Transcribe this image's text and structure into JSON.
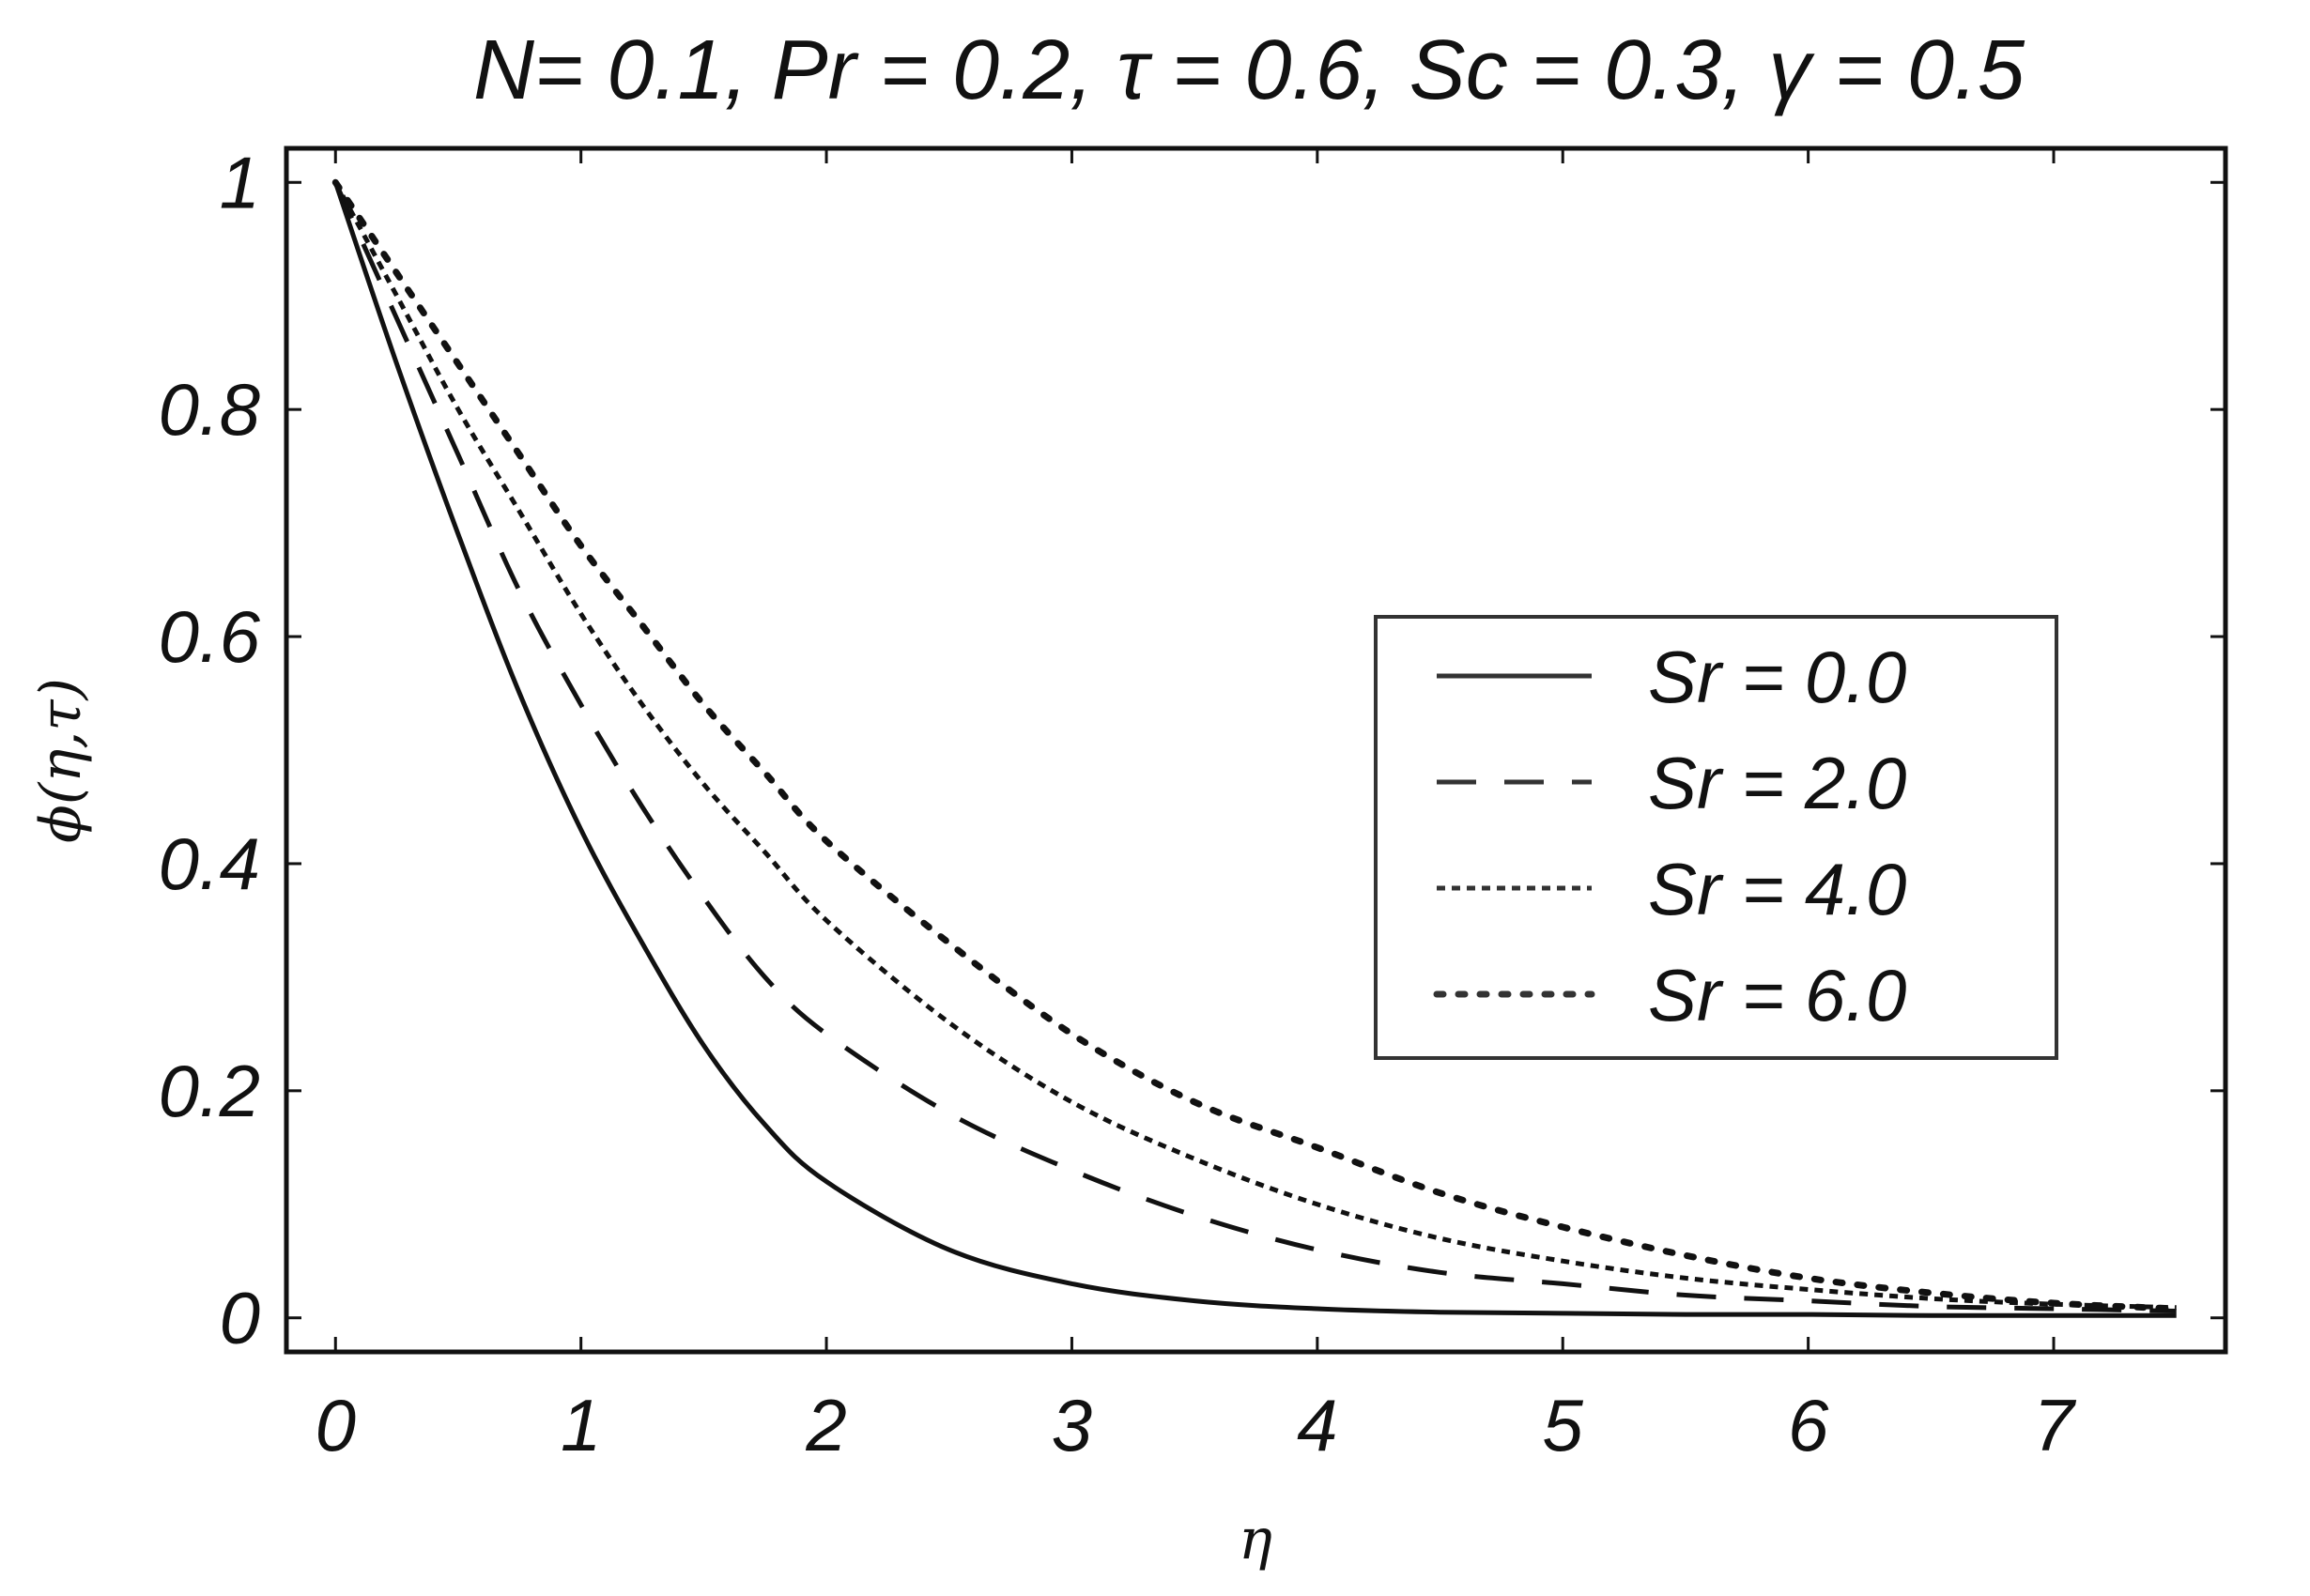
{
  "chart_data": {
    "type": "line",
    "title": "N= 0.1, Pr = 0.2, τ = 0.6, Sc = 0.3, γ = 0.5",
    "xlabel": "η",
    "ylabel": "ϕ(η,τ)",
    "xlim": [
      -0.2,
      7.7
    ],
    "ylim": [
      -0.03,
      1.03
    ],
    "xticks": [
      0,
      1,
      2,
      3,
      4,
      5,
      6,
      7
    ],
    "yticks": [
      0,
      0.2,
      0.4,
      0.6,
      0.8,
      1
    ],
    "ytick_labels": [
      "0",
      "0.2",
      "0.4",
      "0.6",
      "0.8",
      "1"
    ],
    "grid": false,
    "legend_position": "center-right",
    "series": [
      {
        "name": "Sr = 0.0",
        "style": "solid",
        "x": [
          0,
          0.25,
          0.5,
          0.75,
          1,
          1.25,
          1.5,
          1.75,
          2,
          2.5,
          3,
          3.5,
          4,
          4.5,
          5,
          5.5,
          6,
          6.5,
          7,
          7.5
        ],
        "y": [
          1.0,
          0.84,
          0.69,
          0.55,
          0.43,
          0.33,
          0.24,
          0.17,
          0.12,
          0.06,
          0.03,
          0.015,
          0.008,
          0.005,
          0.004,
          0.003,
          0.003,
          0.002,
          0.002,
          0.002
        ]
      },
      {
        "name": "Sr = 2.0",
        "style": "dashed",
        "x": [
          0,
          0.25,
          0.5,
          0.75,
          1,
          1.25,
          1.5,
          1.75,
          2,
          2.5,
          3,
          3.5,
          4,
          4.5,
          5,
          5.5,
          6,
          6.5,
          7,
          7.5
        ],
        "y": [
          1.0,
          0.88,
          0.76,
          0.64,
          0.54,
          0.45,
          0.37,
          0.3,
          0.25,
          0.18,
          0.13,
          0.09,
          0.06,
          0.04,
          0.03,
          0.02,
          0.015,
          0.01,
          0.008,
          0.006
        ]
      },
      {
        "name": "Sr = 4.0",
        "style": "fine-dashed",
        "x": [
          0,
          0.25,
          0.5,
          0.75,
          1,
          1.25,
          1.5,
          1.75,
          2,
          2.5,
          3,
          3.5,
          4,
          4.5,
          5,
          5.5,
          6,
          6.5,
          7,
          7.5
        ],
        "y": [
          1.0,
          0.9,
          0.8,
          0.71,
          0.62,
          0.54,
          0.47,
          0.41,
          0.35,
          0.26,
          0.19,
          0.14,
          0.1,
          0.07,
          0.05,
          0.035,
          0.025,
          0.017,
          0.012,
          0.009
        ]
      },
      {
        "name": "Sr = 6.0",
        "style": "dotted",
        "x": [
          0,
          0.25,
          0.5,
          0.75,
          1,
          1.25,
          1.5,
          1.75,
          2,
          2.5,
          3,
          3.5,
          4,
          4.5,
          5,
          5.5,
          6,
          6.5,
          7,
          7.5
        ],
        "y": [
          1.0,
          0.92,
          0.84,
          0.76,
          0.68,
          0.61,
          0.54,
          0.48,
          0.42,
          0.33,
          0.25,
          0.19,
          0.15,
          0.11,
          0.08,
          0.055,
          0.035,
          0.022,
          0.013,
          0.008
        ]
      }
    ]
  }
}
